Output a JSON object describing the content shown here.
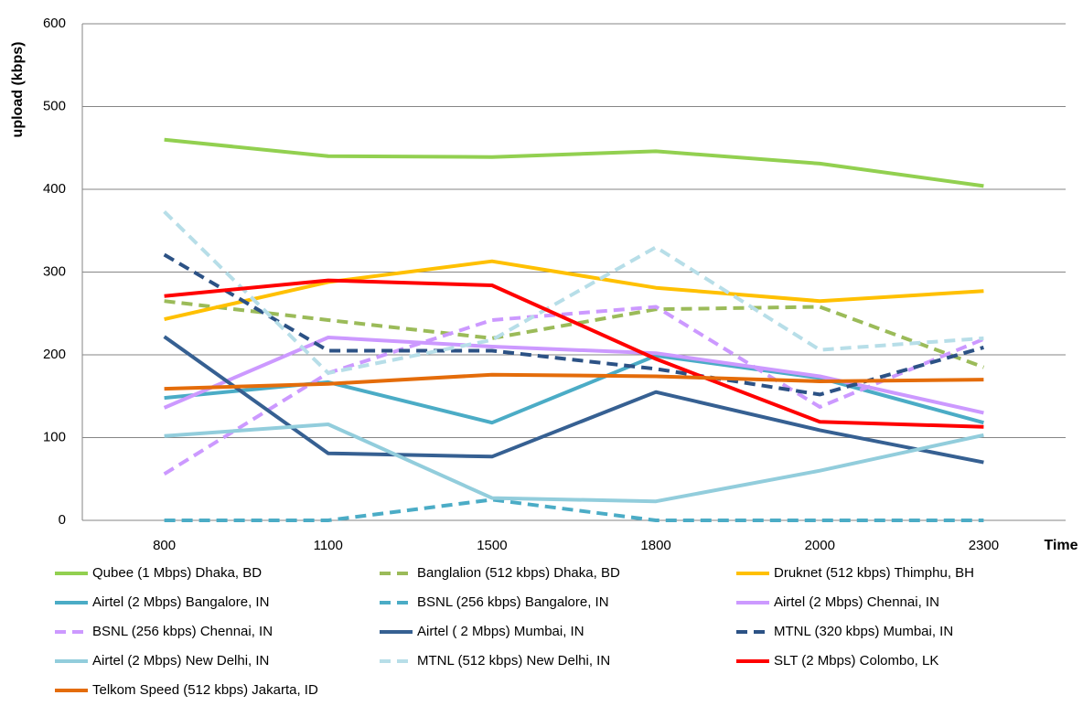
{
  "chart_data": {
    "type": "line",
    "x_label": "Time",
    "y_label": "upload (kbps)",
    "categories": [
      "800",
      "1100",
      "1500",
      "1800",
      "2000",
      "2300"
    ],
    "ylim": [
      0,
      600
    ],
    "yticks": [
      0,
      100,
      200,
      300,
      400,
      500,
      600
    ],
    "grid": true,
    "series": [
      {
        "name": "Qubee (1 Mbps) Dhaka, BD",
        "color": "#92d050",
        "style": "solid",
        "values": [
          460,
          440,
          439,
          446,
          431,
          404
        ]
      },
      {
        "name": "Banglalion (512 kbps) Dhaka, BD",
        "color": "#9bbb59",
        "style": "dashed",
        "values": [
          265,
          242,
          220,
          255,
          258,
          185
        ]
      },
      {
        "name": "Druknet (512 kbps) Thimphu, BH",
        "color": "#ffc000",
        "style": "solid",
        "values": [
          243,
          288,
          313,
          281,
          265,
          277
        ]
      },
      {
        "name": "Airtel (2 Mbps) Bangalore, IN",
        "color": "#4bacc6",
        "style": "solid",
        "values": [
          148,
          167,
          118,
          199,
          172,
          118
        ]
      },
      {
        "name": "BSNL (256 kbps) Bangalore, IN",
        "color": "#4bacc6",
        "style": "dashed",
        "values": [
          0,
          0,
          25,
          0,
          0,
          0
        ]
      },
      {
        "name": "Airtel (2 Mbps) Chennai, IN",
        "color": "#cc99ff",
        "style": "solid",
        "values": [
          136,
          221,
          210,
          202,
          174,
          130
        ]
      },
      {
        "name": "BSNL (256 kbps) Chennai, IN",
        "color": "#cc99ff",
        "style": "dashed",
        "values": [
          56,
          178,
          242,
          258,
          137,
          219
        ]
      },
      {
        "name": "Airtel ( 2 Mbps) Mumbai, IN",
        "color": "#366092",
        "style": "solid",
        "values": [
          222,
          81,
          77,
          155,
          109,
          70
        ]
      },
      {
        "name": "MTNL (320 kbps) Mumbai, IN",
        "color": "#2c5285",
        "style": "dashed",
        "values": [
          321,
          205,
          205,
          183,
          152,
          209
        ]
      },
      {
        "name": "Airtel (2 Mbps) New Delhi, IN",
        "color": "#92cddc",
        "style": "solid",
        "values": [
          102,
          116,
          27,
          23,
          60,
          103
        ]
      },
      {
        "name": "MTNL (512 kbps) New Delhi, IN",
        "color": "#b7dee8",
        "style": "dashed",
        "values": [
          373,
          178,
          218,
          330,
          206,
          220
        ]
      },
      {
        "name": "SLT (2 Mbps) Colombo, LK",
        "color": "#ff0000",
        "style": "solid",
        "values": [
          271,
          290,
          284,
          195,
          119,
          113
        ]
      },
      {
        "name": "Telkom Speed (512 kbps) Jakarta, ID",
        "color": "#e46c0a",
        "style": "solid",
        "values": [
          159,
          165,
          176,
          174,
          168,
          170
        ]
      }
    ]
  }
}
